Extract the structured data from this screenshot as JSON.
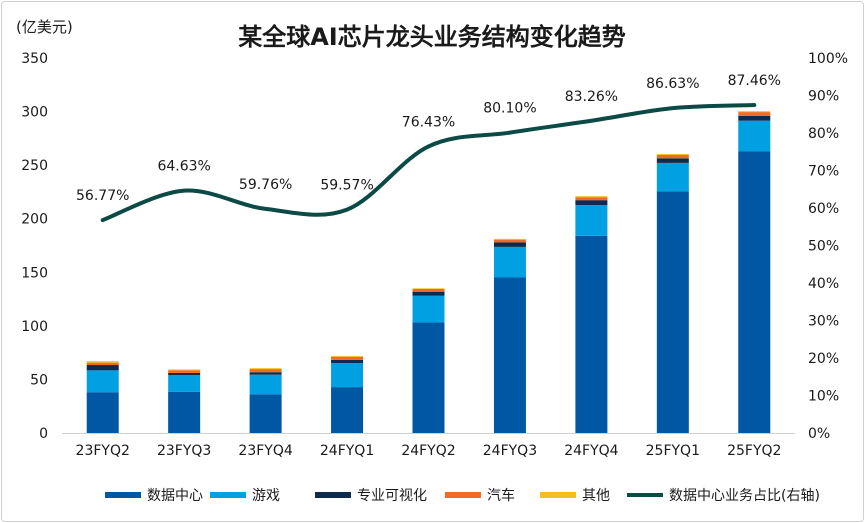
{
  "chart_data": {
    "type": "bar",
    "title": "某全球AI芯片龙头业务结构变化趋势",
    "ylabel": "(亿美元)",
    "ylim": [
      0,
      350
    ],
    "yticks": [
      0,
      50,
      100,
      150,
      200,
      250,
      300,
      350
    ],
    "y2lim": [
      0,
      100
    ],
    "y2ticks": [
      "0%",
      "10%",
      "20%",
      "30%",
      "40%",
      "50%",
      "60%",
      "70%",
      "80%",
      "90%",
      "100%"
    ],
    "categories": [
      "23FYQ2",
      "23FYQ3",
      "23FYQ4",
      "24FYQ1",
      "24FYQ2",
      "24FYQ3",
      "24FYQ4",
      "25FYQ1",
      "25FYQ2"
    ],
    "series": [
      {
        "name": "数据中心",
        "color": "#0057a3",
        "values": [
          38.06,
          38.33,
          36.16,
          42.84,
          103.23,
          145.14,
          184.04,
          225.63,
          262.72
        ]
      },
      {
        "name": "游戏",
        "color": "#00a0e3",
        "values": [
          20.42,
          15.74,
          18.31,
          22.4,
          24.86,
          28.56,
          28.65,
          26.47,
          28.8
        ]
      },
      {
        "name": "专业可视化",
        "color": "#0d2b4e",
        "values": [
          4.96,
          2.0,
          2.26,
          2.95,
          3.79,
          4.16,
          4.63,
          4.27,
          4.54
        ]
      },
      {
        "name": "汽车",
        "color": "#f26b24",
        "values": [
          2.2,
          2.51,
          2.94,
          2.96,
          2.53,
          2.61,
          2.81,
          3.29,
          3.46
        ]
      },
      {
        "name": "其他",
        "color": "#f5c01e",
        "values": [
          1.4,
          0.73,
          0.84,
          0.77,
          0.66,
          0.73,
          0.9,
          0.78,
          0.88
        ]
      }
    ],
    "line": {
      "name": "数据中心业务占比(右轴)",
      "color": "#0b4a45",
      "values": [
        56.77,
        64.63,
        59.76,
        59.57,
        76.43,
        80.1,
        83.26,
        86.63,
        87.46
      ],
      "labels": [
        "56.77%",
        "64.63%",
        "59.76%",
        "59.57%",
        "76.43%",
        "80.10%",
        "83.26%",
        "86.63%",
        "87.46%"
      ]
    },
    "grid": false,
    "legend": "bottom"
  }
}
